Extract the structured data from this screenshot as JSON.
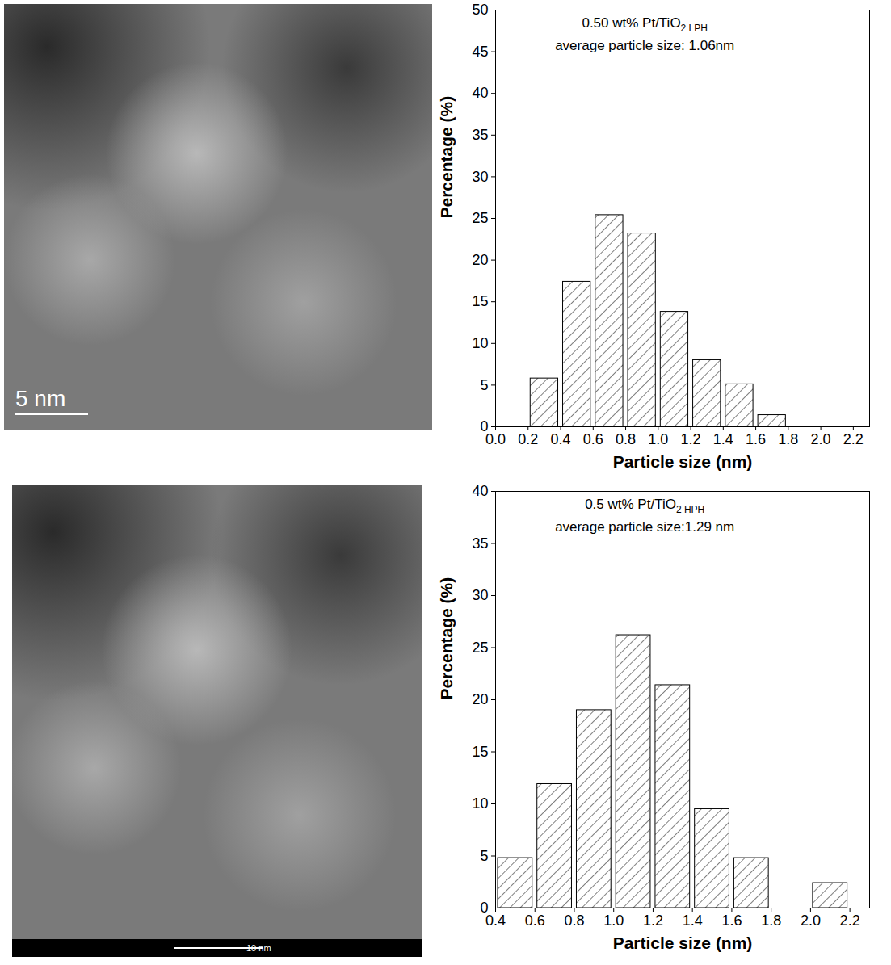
{
  "chart_data": [
    {
      "type": "histogram",
      "annotation": {
        "text": "0.50 wt% Pt/TiO",
        "sub": "2 LPH"
      },
      "subtitle": "average particle size: 1.06nm",
      "x_label": "Particle size (nm)",
      "y_label": "Percentage (%)",
      "bins": [
        0.2,
        0.4,
        0.6,
        0.8,
        1.0,
        1.2,
        1.4,
        1.6,
        1.8
      ],
      "values": [
        5.8,
        17.4,
        25.4,
        23.2,
        13.8,
        8.0,
        5.1,
        1.4
      ],
      "color": "#000000",
      "xlim": [
        0,
        2.3
      ],
      "xticks": [
        {
          "value": 0,
          "label": "0.0"
        },
        0.2,
        0.4,
        0.6,
        0.8,
        {
          "value": 1,
          "label": "1.0"
        },
        1.2,
        1.4,
        1.6,
        1.8,
        {
          "value": 2,
          "label": "2.0"
        },
        2.2
      ],
      "ylim": [
        0,
        50
      ],
      "yticks": [
        0,
        5,
        10,
        15,
        20,
        25,
        30,
        35,
        40,
        45,
        50
      ]
    },
    {
      "type": "histogram",
      "annotation": {
        "text": "0.5 wt% Pt/TiO",
        "sub": "2 HPH"
      },
      "subtitle": "average particle size:1.29 nm",
      "x_label": "Particle size (nm)",
      "y_label": "Percentage (%)",
      "bins": [
        0.4,
        0.6,
        0.8,
        1.0,
        1.2,
        1.4,
        1.6,
        1.8,
        2.0,
        2.2
      ],
      "values": [
        4.8,
        11.9,
        19.0,
        26.2,
        21.4,
        9.5,
        4.8,
        0,
        2.4
      ],
      "color": "#000000",
      "xlim": [
        0.4,
        2.3
      ],
      "xticks": [
        0.4,
        0.6,
        0.8,
        {
          "value": 1,
          "label": "1.0"
        },
        1.2,
        1.4,
        1.6,
        1.8,
        {
          "value": 2,
          "label": "2.0"
        },
        2.2
      ],
      "ylim": [
        0,
        40
      ],
      "yticks": [
        0,
        5,
        10,
        15,
        20,
        25,
        30,
        35,
        40
      ]
    }
  ],
  "images": [
    {
      "scale_bar": "5 nm"
    },
    {
      "scale_bar": "10 nm"
    }
  ]
}
